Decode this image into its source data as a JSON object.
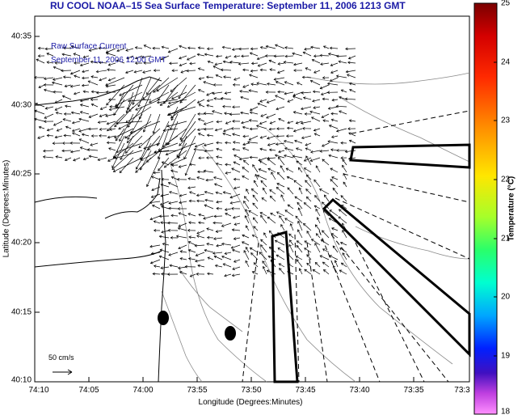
{
  "title": "RU COOL  NOAA–15  Sea Surface Temperature:  September 11, 2006 1213 GMT",
  "annotations": {
    "line1": "Raw Surface Current",
    "line2": "September 11, 2006 12:00 GMT"
  },
  "scale_label": "50 cm/s",
  "axes": {
    "xlabel": "Longitude (Degrees:Minutes)",
    "ylabel": "Latitude (Degrees:Minutes)",
    "xticks": [
      "74:10",
      "74:05",
      "74:00",
      "73:55",
      "73:50",
      "73:45",
      "73:40",
      "73:35",
      "73:3"
    ],
    "yticks": [
      "40:35",
      "40:30",
      "40:25",
      "40:20",
      "40:15",
      "40:10"
    ]
  },
  "colorbar": {
    "title": "Temperature (°C)",
    "ticks": [
      "25",
      "24",
      "23",
      "22",
      "21",
      "20",
      "19",
      "18"
    ]
  },
  "colors": {
    "title": "#1a1aa6",
    "annotation": "#1a1aa6"
  }
}
